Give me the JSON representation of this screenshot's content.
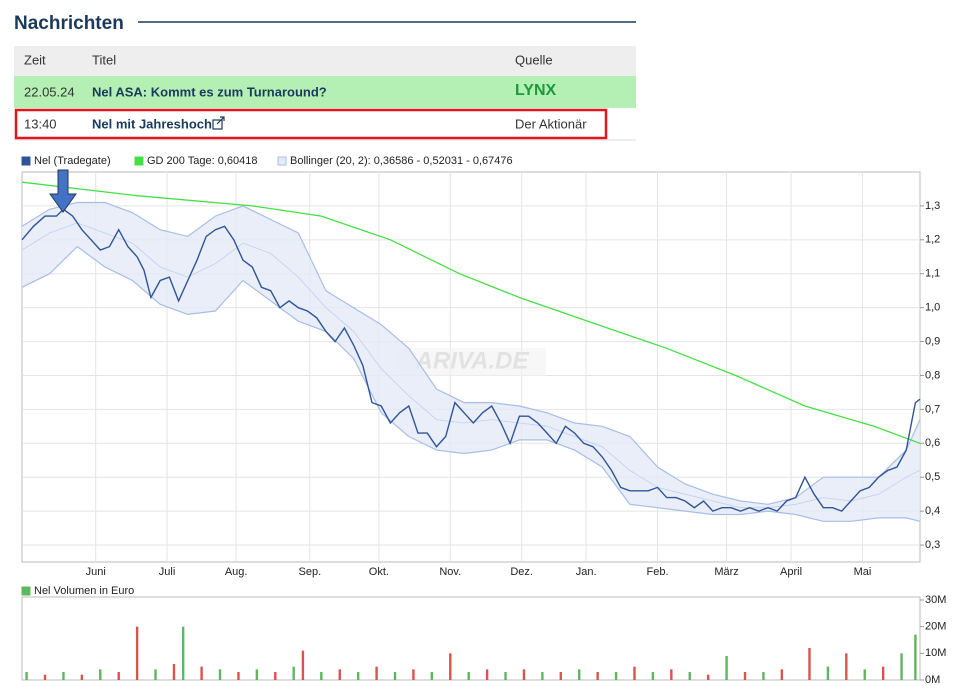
{
  "news": {
    "title": "Nachrichten",
    "columns": [
      "Zeit",
      "Titel",
      "Quelle"
    ],
    "rows": [
      [
        "22.05.24",
        "Nel ASA: Kommt es zum Turnaround?",
        "LYNX"
      ],
      [
        "13:40",
        "Nel mit Jahreshoch",
        "Der Aktionär"
      ]
    ]
  },
  "chart_data": [
    {
      "type": "line",
      "watermark": "ARIVA.DE",
      "grid": true,
      "xlim": [
        0,
        390
      ],
      "xticks": [
        {
          "value": 32,
          "label": "Juni"
        },
        {
          "value": 63,
          "label": "Juli"
        },
        {
          "value": 93,
          "label": "Aug."
        },
        {
          "value": 125,
          "label": "Sep."
        },
        {
          "value": 155,
          "label": "Okt."
        },
        {
          "value": 186,
          "label": "Nov."
        },
        {
          "value": 217,
          "label": "Dez."
        },
        {
          "value": 245,
          "label": "Jan."
        },
        {
          "value": 276,
          "label": "Feb."
        },
        {
          "value": 306,
          "label": "März"
        },
        {
          "value": 334,
          "label": "April"
        },
        {
          "value": 365,
          "label": "Mai"
        }
      ],
      "ylim": [
        0.25,
        1.4
      ],
      "yticks": [
        {
          "value": 0.3,
          "label": "0,3"
        },
        {
          "value": 0.4,
          "label": "0,4"
        },
        {
          "value": 0.5,
          "label": "0,5"
        },
        {
          "value": 0.6,
          "label": "0,6"
        },
        {
          "value": 0.7,
          "label": "0,7"
        },
        {
          "value": 0.8,
          "label": "0,8"
        },
        {
          "value": 0.9,
          "label": "0,9"
        },
        {
          "value": 1.0,
          "label": "1,0"
        },
        {
          "value": 1.1,
          "label": "1,1"
        },
        {
          "value": 1.2,
          "label": "1,2"
        },
        {
          "value": 1.3,
          "label": "1,3"
        }
      ],
      "series": [
        {
          "name": "Nel (Tradegate)",
          "color": "#2f5597",
          "x": [
            0,
            5,
            10,
            15,
            18,
            22,
            26,
            30,
            34,
            38,
            42,
            46,
            50,
            53,
            56,
            60,
            64,
            68,
            72,
            76,
            80,
            84,
            88,
            92,
            96,
            100,
            104,
            108,
            112,
            116,
            120,
            124,
            128,
            132,
            136,
            140,
            144,
            148,
            152,
            156,
            160,
            164,
            168,
            172,
            176,
            180,
            184,
            188,
            192,
            196,
            200,
            204,
            208,
            212,
            216,
            220,
            224,
            228,
            232,
            236,
            240,
            244,
            248,
            252,
            256,
            260,
            264,
            268,
            272,
            276,
            280,
            284,
            288,
            292,
            296,
            300,
            304,
            308,
            312,
            316,
            320,
            324,
            328,
            332,
            336,
            340,
            344,
            348,
            352,
            356,
            360,
            364,
            368,
            372,
            376,
            380,
            384,
            388,
            390
          ],
          "values": [
            1.2,
            1.24,
            1.27,
            1.27,
            1.29,
            1.27,
            1.23,
            1.2,
            1.17,
            1.18,
            1.23,
            1.18,
            1.15,
            1.11,
            1.03,
            1.08,
            1.09,
            1.02,
            1.08,
            1.14,
            1.21,
            1.23,
            1.24,
            1.2,
            1.14,
            1.12,
            1.06,
            1.05,
            1.0,
            1.02,
            1.0,
            0.99,
            0.97,
            0.93,
            0.9,
            0.94,
            0.89,
            0.83,
            0.72,
            0.71,
            0.66,
            0.69,
            0.71,
            0.63,
            0.63,
            0.59,
            0.62,
            0.72,
            0.69,
            0.66,
            0.69,
            0.71,
            0.66,
            0.6,
            0.68,
            0.68,
            0.66,
            0.63,
            0.6,
            0.65,
            0.63,
            0.6,
            0.59,
            0.56,
            0.52,
            0.47,
            0.46,
            0.46,
            0.46,
            0.47,
            0.44,
            0.44,
            0.43,
            0.41,
            0.43,
            0.4,
            0.41,
            0.41,
            0.4,
            0.41,
            0.4,
            0.41,
            0.4,
            0.43,
            0.44,
            0.5,
            0.45,
            0.41,
            0.41,
            0.4,
            0.43,
            0.46,
            0.47,
            0.5,
            0.52,
            0.53,
            0.58,
            0.72,
            0.73
          ]
        },
        {
          "name": "GD 200 Tage: 0,60418",
          "color": "#44e044",
          "x": [
            0,
            50,
            100,
            130,
            160,
            190,
            216,
            250,
            280,
            310,
            340,
            370,
            390
          ],
          "values": [
            1.37,
            1.33,
            1.3,
            1.27,
            1.2,
            1.1,
            1.03,
            0.95,
            0.88,
            0.8,
            0.71,
            0.65,
            0.6
          ]
        },
        {
          "name": "Bollinger (20, 2): 0,36586 - 0,52031 - 0,67476",
          "color": "#a9bde6",
          "fill": "#e3eaf8",
          "x": [
            0,
            12,
            24,
            36,
            48,
            60,
            72,
            84,
            96,
            108,
            120,
            132,
            144,
            156,
            168,
            180,
            192,
            204,
            216,
            228,
            240,
            252,
            264,
            276,
            288,
            300,
            312,
            324,
            336,
            348,
            360,
            372,
            384,
            390
          ],
          "upper": [
            1.24,
            1.29,
            1.31,
            1.31,
            1.28,
            1.23,
            1.21,
            1.27,
            1.3,
            1.26,
            1.22,
            1.05,
            1.0,
            0.95,
            0.88,
            0.76,
            0.72,
            0.72,
            0.71,
            0.69,
            0.66,
            0.65,
            0.62,
            0.53,
            0.48,
            0.45,
            0.43,
            0.42,
            0.44,
            0.5,
            0.5,
            0.5,
            0.58,
            0.67
          ],
          "middle": [
            1.17,
            1.22,
            1.25,
            1.22,
            1.19,
            1.12,
            1.09,
            1.13,
            1.19,
            1.16,
            1.09,
            1.0,
            0.93,
            0.82,
            0.74,
            0.67,
            0.66,
            0.67,
            0.66,
            0.65,
            0.62,
            0.59,
            0.52,
            0.47,
            0.45,
            0.43,
            0.41,
            0.41,
            0.42,
            0.44,
            0.43,
            0.45,
            0.5,
            0.52
          ],
          "lower": [
            1.06,
            1.1,
            1.18,
            1.12,
            1.08,
            1.01,
            0.98,
            0.99,
            1.08,
            1.02,
            0.96,
            0.93,
            0.85,
            0.69,
            0.62,
            0.58,
            0.57,
            0.58,
            0.61,
            0.61,
            0.58,
            0.53,
            0.42,
            0.41,
            0.4,
            0.39,
            0.39,
            0.4,
            0.39,
            0.37,
            0.37,
            0.38,
            0.38,
            0.37
          ]
        }
      ]
    },
    {
      "type": "bar",
      "xlim": [
        0,
        390
      ],
      "ylim": [
        0,
        30
      ],
      "yticks": [
        {
          "value": 0,
          "label": "0M"
        },
        {
          "value": 10,
          "label": "10M"
        },
        {
          "value": 20,
          "label": "20M"
        },
        {
          "value": 30,
          "label": "30M"
        }
      ],
      "series": [
        {
          "name": "Nel Volumen in Euro",
          "color": "#5cb85c",
          "x": [
            2,
            10,
            18,
            26,
            34,
            42,
            50,
            58,
            66,
            70,
            78,
            86,
            94,
            102,
            110,
            118,
            122,
            130,
            138,
            146,
            154,
            162,
            170,
            178,
            186,
            194,
            202,
            210,
            218,
            226,
            234,
            242,
            250,
            258,
            266,
            274,
            282,
            290,
            298,
            306,
            314,
            322,
            330,
            342,
            350,
            358,
            366,
            374,
            382,
            388
          ],
          "values": [
            3,
            2,
            3,
            2,
            4,
            3,
            20,
            4,
            6,
            20,
            5,
            4,
            3,
            4,
            3,
            5,
            11,
            3,
            4,
            3,
            5,
            3,
            4,
            3,
            10,
            3,
            4,
            3,
            4,
            3,
            3,
            4,
            3,
            3,
            5,
            3,
            4,
            3,
            2,
            9,
            3,
            3,
            4,
            12,
            5,
            10,
            4,
            5,
            10,
            17
          ],
          "colors": [
            "#5cb85c",
            "#d9534f",
            "#5cb85c",
            "#d9534f",
            "#5cb85c",
            "#d9534f",
            "#d9534f",
            "#5cb85c",
            "#d9534f",
            "#5cb85c",
            "#d9534f",
            "#5cb85c",
            "#d9534f",
            "#5cb85c",
            "#d9534f",
            "#5cb85c",
            "#d9534f",
            "#5cb85c",
            "#d9534f",
            "#5cb85c",
            "#d9534f",
            "#5cb85c",
            "#d9534f",
            "#5cb85c",
            "#d9534f",
            "#5cb85c",
            "#d9534f",
            "#5cb85c",
            "#d9534f",
            "#5cb85c",
            "#d9534f",
            "#5cb85c",
            "#d9534f",
            "#5cb85c",
            "#d9534f",
            "#5cb85c",
            "#d9534f",
            "#5cb85c",
            "#d9534f",
            "#5cb85c",
            "#d9534f",
            "#5cb85c",
            "#d9534f",
            "#d9534f",
            "#5cb85c",
            "#d9534f",
            "#5cb85c",
            "#d9534f",
            "#5cb85c",
            "#5cb85c"
          ]
        }
      ]
    }
  ]
}
